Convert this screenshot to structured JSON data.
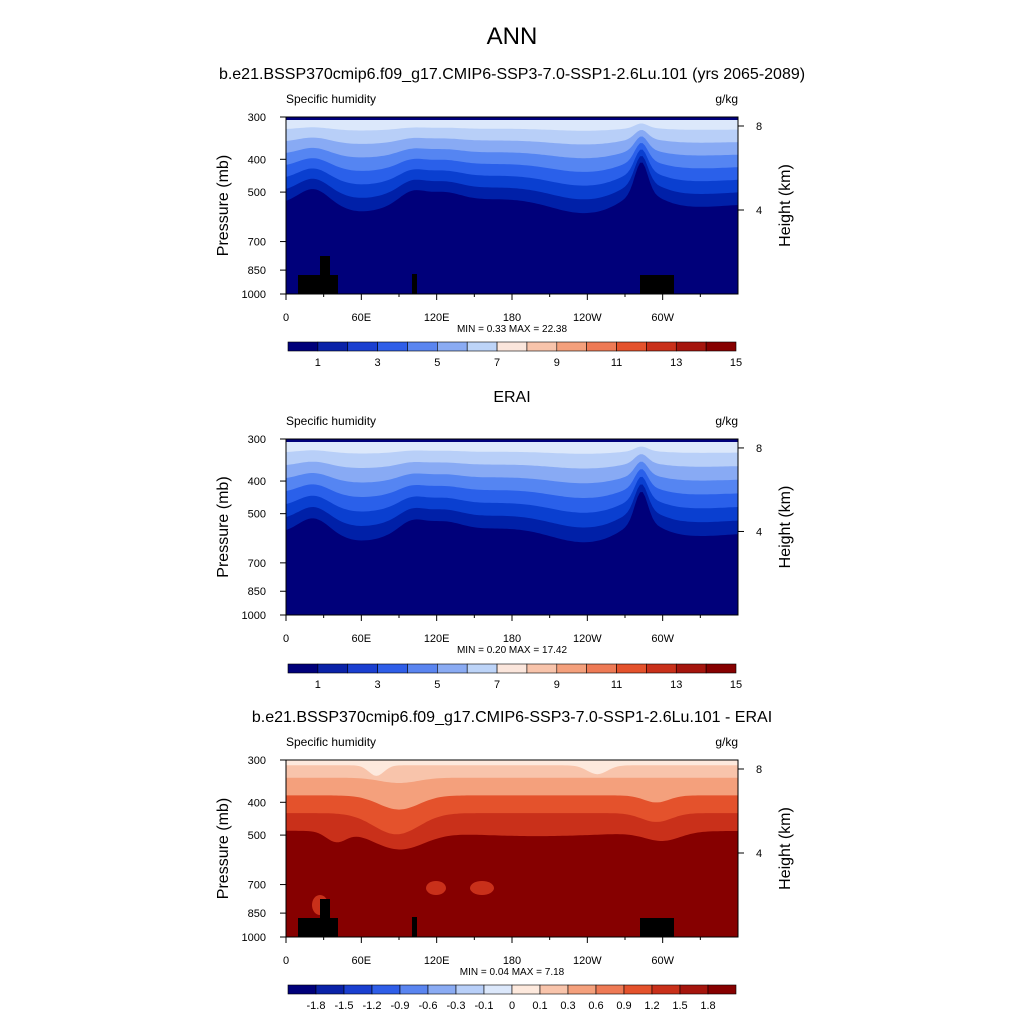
{
  "figure": {
    "title": "ANN",
    "colors": {
      "warm_ramp": [
        "#fde9dd",
        "#f8c4ab",
        "#f4a27f",
        "#ee7a55",
        "#e4522c",
        "#c9301a",
        "#a5150d",
        "#860000"
      ],
      "cool_ramp": [
        "#00007a",
        "#0020a8",
        "#0a3fd0",
        "#2a60ea",
        "#5585f2",
        "#88aaf4",
        "#b8cff8",
        "#dce8fb"
      ],
      "terrain": "#000000"
    }
  },
  "chart_data": [
    {
      "type": "heatmap",
      "title": "b.e21.BSSP370cmip6.f09_g17.CMIP6-SSP3-7.0-SSP1-2.6Lu.101 (yrs 2065-2089)",
      "left_label": "Specific humidity",
      "right_label": "g/kg",
      "xlabel": "",
      "ylabel": "Pressure (mb)",
      "y2label": "Height (km)",
      "x_ticks": [
        "0",
        "60E",
        "120E",
        "180",
        "120W",
        "60W"
      ],
      "x_tick_lon": [
        0,
        60,
        120,
        180,
        240,
        300
      ],
      "xlim": [
        0,
        360
      ],
      "y_ticks": [
        "300",
        "400",
        "500",
        "700",
        "850",
        "1000"
      ],
      "y_tick_values": [
        300,
        400,
        500,
        700,
        850,
        1000
      ],
      "ylim": [
        1000,
        300
      ],
      "y2_ticks": [
        "8",
        "4"
      ],
      "y2_tick_values": [
        8,
        4
      ],
      "stats": "MIN =   0.33  MAX =  22.38",
      "colorbar_labels": [
        "1",
        "3",
        "5",
        "7",
        "9",
        "11",
        "13",
        "15"
      ],
      "colorbar_colors": [
        "#00007a",
        "#0a22a8",
        "#1a3fd0",
        "#2f5ee8",
        "#5a85f0",
        "#8aabf3",
        "#bdd4f8",
        "#fbe6dc",
        "#f8c4ab",
        "#f4a07c",
        "#ee7a55",
        "#e4522c",
        "#c9301a",
        "#a5150d",
        "#860000"
      ],
      "field": "humidity",
      "terrain": true
    },
    {
      "type": "heatmap",
      "title": "ERAI",
      "left_label": "Specific humidity",
      "right_label": "g/kg",
      "xlabel": "",
      "ylabel": "Pressure (mb)",
      "y2label": "Height (km)",
      "x_ticks": [
        "0",
        "60E",
        "120E",
        "180",
        "120W",
        "60W"
      ],
      "x_tick_lon": [
        0,
        60,
        120,
        180,
        240,
        300
      ],
      "xlim": [
        0,
        360
      ],
      "y_ticks": [
        "300",
        "400",
        "500",
        "700",
        "850",
        "1000"
      ],
      "y_tick_values": [
        300,
        400,
        500,
        700,
        850,
        1000
      ],
      "ylim": [
        1000,
        300
      ],
      "y2_ticks": [
        "8",
        "4"
      ],
      "y2_tick_values": [
        8,
        4
      ],
      "stats": "MIN =   0.20  MAX =  17.42",
      "colorbar_labels": [
        "1",
        "3",
        "5",
        "7",
        "9",
        "11",
        "13",
        "15"
      ],
      "colorbar_colors": [
        "#00007a",
        "#0a22a8",
        "#1a3fd0",
        "#2f5ee8",
        "#5a85f0",
        "#8aabf3",
        "#bdd4f8",
        "#fbe6dc",
        "#f8c4ab",
        "#f4a07c",
        "#ee7a55",
        "#e4522c",
        "#c9301a",
        "#a5150d",
        "#860000"
      ],
      "field": "humidity",
      "terrain": false
    },
    {
      "type": "heatmap",
      "title": "b.e21.BSSP370cmip6.f09_g17.CMIP6-SSP3-7.0-SSP1-2.6Lu.101 - ERAI",
      "left_label": "Specific humidity",
      "right_label": "g/kg",
      "xlabel": "",
      "ylabel": "Pressure (mb)",
      "y2label": "Height (km)",
      "x_ticks": [
        "0",
        "60E",
        "120E",
        "180",
        "120W",
        "60W"
      ],
      "x_tick_lon": [
        0,
        60,
        120,
        180,
        240,
        300
      ],
      "xlim": [
        0,
        360
      ],
      "y_ticks": [
        "300",
        "400",
        "500",
        "700",
        "850",
        "1000"
      ],
      "y_tick_values": [
        300,
        400,
        500,
        700,
        850,
        1000
      ],
      "ylim": [
        1000,
        300
      ],
      "y2_ticks": [
        "8",
        "4"
      ],
      "y2_tick_values": [
        8,
        4
      ],
      "stats": "MIN =   0.04  MAX =   7.18",
      "colorbar_labels": [
        "-1.8",
        "-1.5",
        "-1.2",
        "-0.9",
        "-0.6",
        "-0.3",
        "-0.1",
        "0",
        "0.1",
        "0.3",
        "0.6",
        "0.9",
        "1.2",
        "1.5",
        "1.8"
      ],
      "colorbar_colors": [
        "#00007a",
        "#0a22a8",
        "#1a3fd0",
        "#2f5ee8",
        "#5a85f0",
        "#8aabf3",
        "#b8cff8",
        "#dce8fb",
        "#fde9dd",
        "#f8c4ab",
        "#f4a07c",
        "#ee7a55",
        "#e4522c",
        "#c9301a",
        "#a5150d",
        "#860000"
      ],
      "field": "difference",
      "terrain": true
    }
  ]
}
